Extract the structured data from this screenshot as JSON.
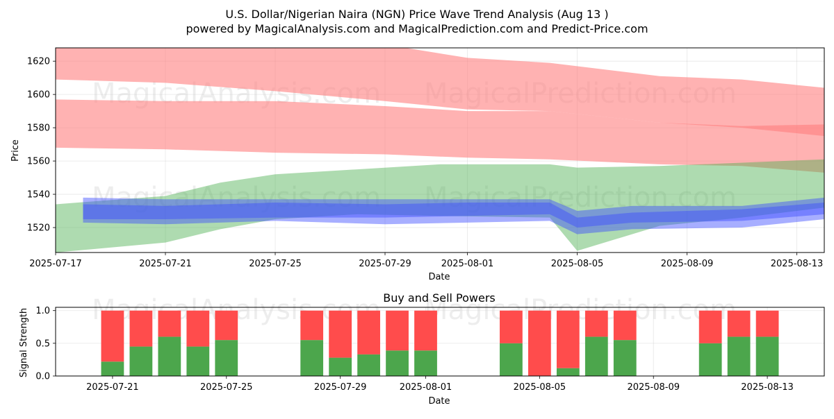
{
  "title_line1": "U.S. Dollar/Nigerian Naira (NGN) Price Wave Trend Analysis (Aug 13 )",
  "title_line2": "powered by MagicalAnalysis.com and MagicalPrediction.com and Predict-Price.com",
  "watermarks": [
    "MagicalAnalysis.com",
    "MagicalPrediction.com"
  ],
  "colors": {
    "red": "#ff7f7f",
    "green": "#4caf50",
    "blue": "#3b4cff",
    "bar_red": "#ff4c4c",
    "bar_green": "#4ca64c"
  },
  "chart_data": [
    {
      "type": "area",
      "title": "",
      "xlabel": "Date",
      "ylabel": "Price",
      "xlim": [
        "2025-07-17",
        "2025-08-14"
      ],
      "ylim": [
        1505,
        1628
      ],
      "x_ticks": [
        "2025-07-17",
        "2025-07-21",
        "2025-07-25",
        "2025-07-29",
        "2025-08-01",
        "2025-08-05",
        "2025-08-09",
        "2025-08-13"
      ],
      "y_ticks": [
        1520,
        1540,
        1560,
        1580,
        1600,
        1620
      ],
      "grid": true,
      "series": [
        {
          "color": "red",
          "x": [
            "2025-07-17",
            "2025-07-21",
            "2025-07-25",
            "2025-07-29",
            "2025-08-01",
            "2025-08-04",
            "2025-08-08",
            "2025-08-11",
            "2025-08-14"
          ],
          "upper": [
            1630,
            1630,
            1630,
            1630,
            1622,
            1619,
            1611,
            1609,
            1604
          ],
          "lower": [
            1609,
            1607,
            1602,
            1596,
            1591,
            1590,
            1583,
            1580,
            1575
          ]
        },
        {
          "color": "red",
          "x": [
            "2025-07-17",
            "2025-07-21",
            "2025-07-25",
            "2025-07-29",
            "2025-08-01",
            "2025-08-04",
            "2025-08-08",
            "2025-08-11",
            "2025-08-14"
          ],
          "upper": [
            1597,
            1596,
            1596,
            1593,
            1590,
            1590,
            1583,
            1581,
            1582
          ],
          "lower": [
            1568,
            1567,
            1565,
            1564,
            1562,
            1561,
            1558,
            1557,
            1553
          ]
        },
        {
          "color": "green",
          "x": [
            "2025-07-17",
            "2025-07-21",
            "2025-07-23",
            "2025-07-25",
            "2025-07-28",
            "2025-07-31",
            "2025-08-04",
            "2025-08-05",
            "2025-08-08",
            "2025-08-11",
            "2025-08-14"
          ],
          "upper": [
            1534,
            1539,
            1547,
            1552,
            1555,
            1558,
            1558,
            1556,
            1557,
            1559,
            1561
          ],
          "lower": [
            1505,
            1511,
            1519,
            1525,
            1528,
            1527,
            1526,
            1506,
            1521,
            1526,
            1532
          ]
        },
        {
          "color": "blue",
          "x": [
            "2025-07-18",
            "2025-07-21",
            "2025-07-25",
            "2025-07-29",
            "2025-08-01",
            "2025-08-04",
            "2025-08-05",
            "2025-08-07",
            "2025-08-11",
            "2025-08-14"
          ],
          "upper": [
            1538,
            1537,
            1537,
            1537,
            1537,
            1537,
            1530,
            1533,
            1533,
            1538
          ],
          "lower": [
            1523,
            1522,
            1524,
            1522,
            1523,
            1524,
            1516,
            1519,
            1520,
            1525
          ]
        },
        {
          "color": "blue",
          "x": [
            "2025-07-18",
            "2025-07-21",
            "2025-07-25",
            "2025-07-29",
            "2025-08-01",
            "2025-08-04",
            "2025-08-05",
            "2025-08-07",
            "2025-08-11",
            "2025-08-14"
          ],
          "upper": [
            1534,
            1533,
            1535,
            1534,
            1535,
            1535,
            1526,
            1529,
            1531,
            1535
          ],
          "lower": [
            1525,
            1525,
            1526,
            1526,
            1527,
            1528,
            1520,
            1523,
            1524,
            1528
          ]
        }
      ]
    },
    {
      "type": "bar",
      "title": "Buy and Sell Powers",
      "xlabel": "Date",
      "ylabel": "Signal Strength",
      "xlim": [
        "2025-07-19",
        "2025-08-15"
      ],
      "ylim": [
        0,
        1.05
      ],
      "x_ticks": [
        "2025-07-21",
        "2025-07-25",
        "2025-07-29",
        "2025-08-01",
        "2025-08-05",
        "2025-08-09",
        "2025-08-13"
      ],
      "y_ticks": [
        "0.0",
        "0.5",
        "1.0"
      ],
      "grid": true,
      "categories": [
        "2025-07-21",
        "2025-07-22",
        "2025-07-23",
        "2025-07-24",
        "2025-07-25",
        "2025-07-28",
        "2025-07-29",
        "2025-07-30",
        "2025-07-31",
        "2025-08-01",
        "2025-08-04",
        "2025-08-05",
        "2025-08-06",
        "2025-08-07",
        "2025-08-08",
        "2025-08-11",
        "2025-08-12",
        "2025-08-13"
      ],
      "series": [
        {
          "color": "green",
          "values": [
            0.22,
            0.45,
            0.6,
            0.45,
            0.55,
            0.55,
            0.28,
            0.33,
            0.39,
            0.39,
            0.5,
            0.0,
            0.12,
            0.6,
            0.55,
            0.5,
            0.6,
            0.6
          ]
        },
        {
          "color": "red",
          "values": [
            0.78,
            0.55,
            0.4,
            0.55,
            0.45,
            0.45,
            0.72,
            0.67,
            0.61,
            0.61,
            0.5,
            1.0,
            0.88,
            0.4,
            0.45,
            0.5,
            0.4,
            0.4
          ]
        }
      ]
    }
  ]
}
